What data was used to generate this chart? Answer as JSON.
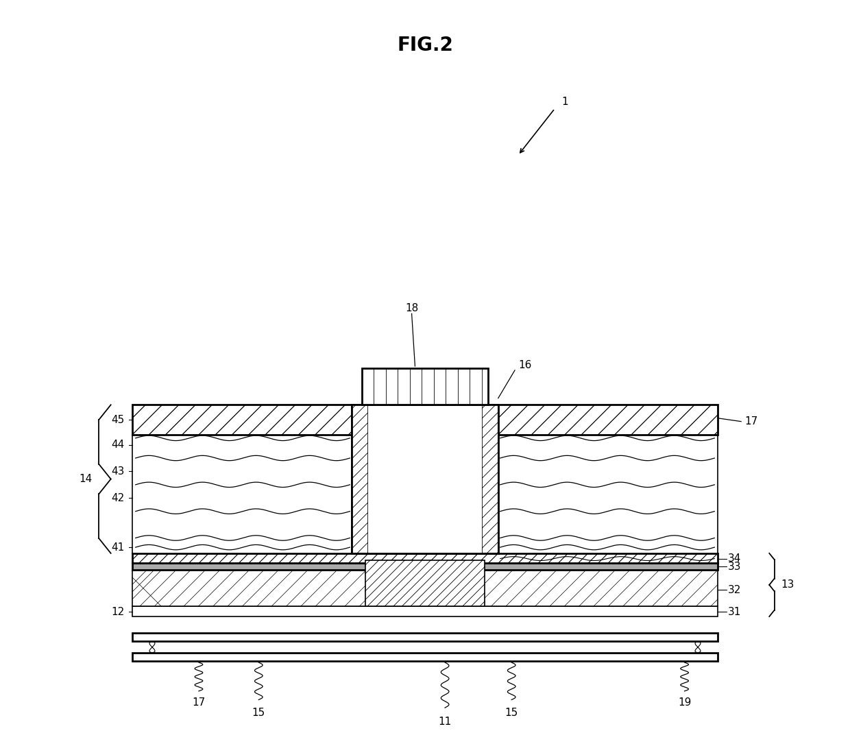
{
  "title": "FIG.2",
  "bg_color": "#ffffff",
  "line_color": "#000000",
  "label_1": "1",
  "label_11": "11",
  "label_12": "12",
  "label_13": "13",
  "label_14": "14",
  "label_15": "15",
  "label_16": "16",
  "label_17": "17",
  "label_18": "18",
  "label_19": "19",
  "label_31": "31",
  "label_32": "32",
  "label_33": "33",
  "label_34": "34",
  "label_41": "41",
  "label_42": "42",
  "label_43": "43",
  "label_44": "44",
  "label_45": "45"
}
